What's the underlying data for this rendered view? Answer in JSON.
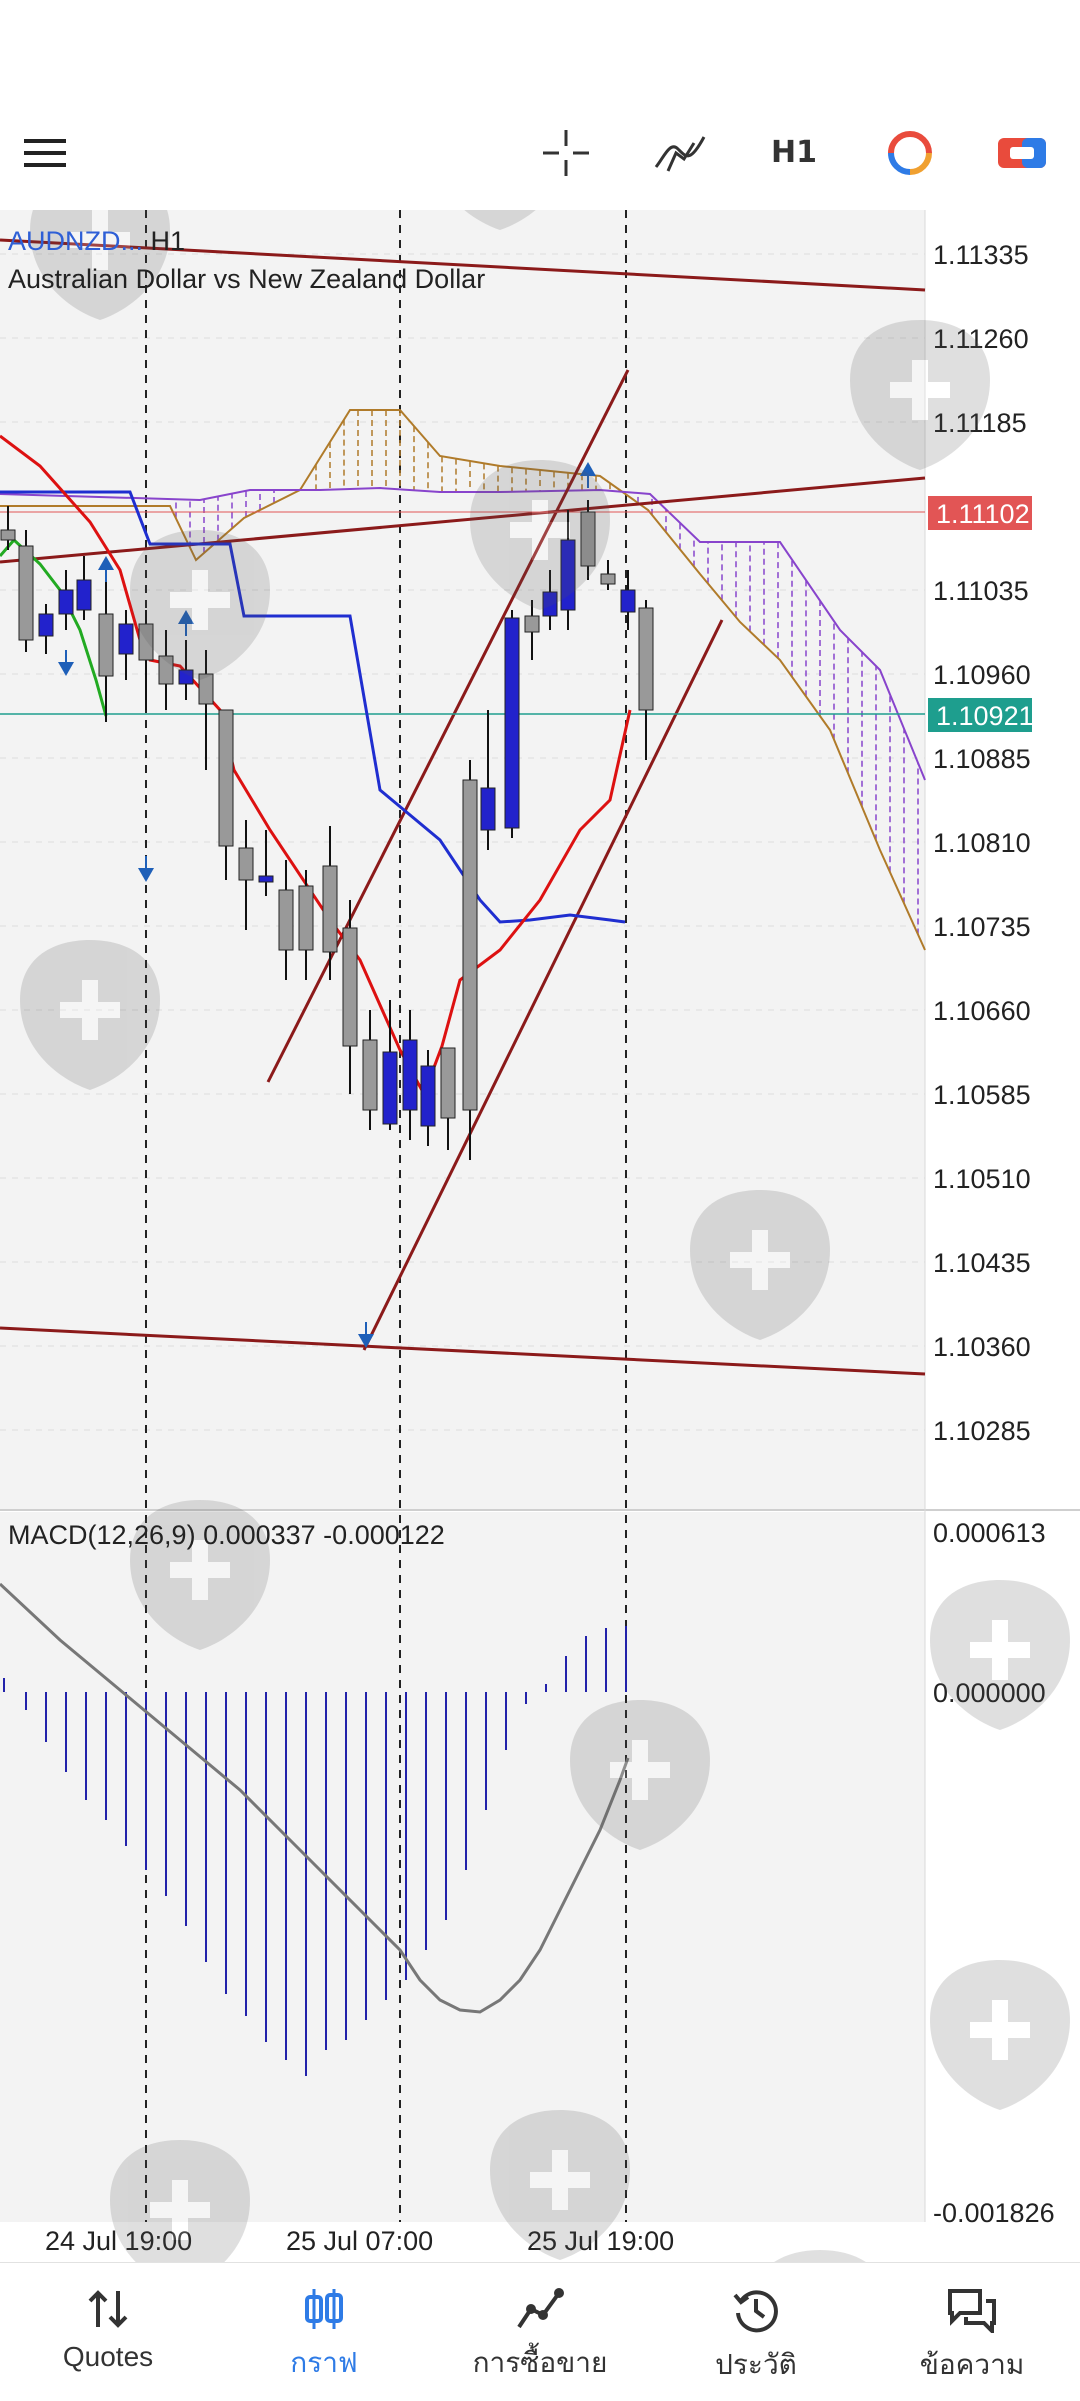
{
  "toolbar": {
    "menu_icon": "hamburger-icon",
    "crosshair_icon": "crosshair-icon",
    "indicators_icon": "indicator-f-icon",
    "timeframe": "H1",
    "color_icon": "circular-arrows-icon",
    "trade_icon": "quick-trade-icon"
  },
  "chart": {
    "symbol": "AUDNZD",
    "symbol_ellipsis": "...",
    "timeframe": "H1",
    "description": "Australian Dollar vs New Zealand Dollar",
    "price_axis": [
      "1.11335",
      "1.11260",
      "1.11185",
      "1.11035",
      "1.10960",
      "1.10885",
      "1.10810",
      "1.10735",
      "1.10660",
      "1.10585",
      "1.10510",
      "1.10435",
      "1.10360",
      "1.10285"
    ],
    "bid_price": "1.11102",
    "ask_price": "1.10921",
    "bid_color": "#e25555",
    "ask_color": "#1e9e8e",
    "time_axis": [
      "24 Jul 19:00",
      "25 Jul 07:00",
      "25 Jul 19:00"
    ]
  },
  "macd": {
    "label": "MACD(12,26,9) 0.000337 -0.000122",
    "axis": [
      "0.000613",
      "0.000000",
      "-0.001826"
    ],
    "histogram_color": "#2222aa",
    "signal_color": "#777777"
  },
  "nav": {
    "items": [
      {
        "label": "Quotes",
        "icon": "quotes-arrows-icon",
        "active": false
      },
      {
        "label": "กราฟ",
        "icon": "chart-candles-icon",
        "active": true
      },
      {
        "label": "การซื้อขาย",
        "icon": "trade-line-icon",
        "active": false
      },
      {
        "label": "ประวัติ",
        "icon": "history-clock-icon",
        "active": false
      },
      {
        "label": "ข้อความ",
        "icon": "messages-icon",
        "active": false
      }
    ]
  },
  "colors": {
    "accent": "#2e7be6",
    "bull_candle": "#2222cc",
    "bear_candle": "#999999",
    "kijun": "#1f2ed0",
    "tenkan": "#dd1111",
    "chikou": "#22aa22",
    "span_a": "#b07b2a",
    "span_b": "#8844cc",
    "trendline": "#8b1a1a"
  }
}
